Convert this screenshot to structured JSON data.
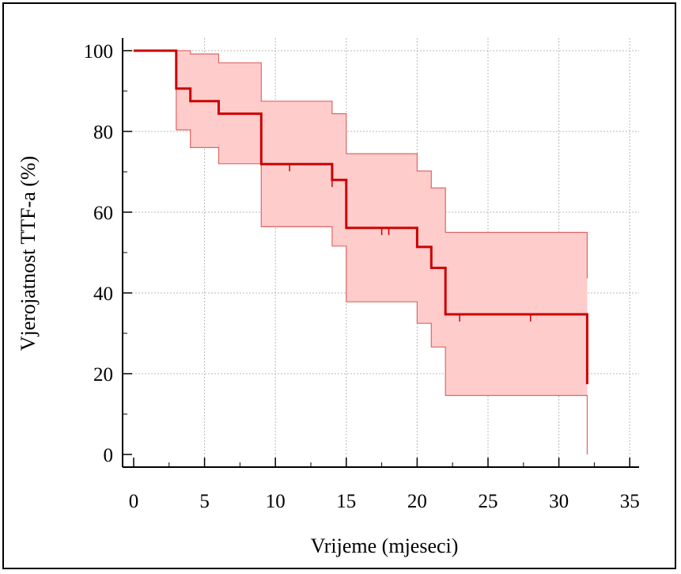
{
  "chart_data": {
    "type": "line",
    "subtype": "kaplan-meier survival curve with confidence band",
    "xlabel": "Vrijeme (mjeseci)",
    "ylabel": "Vjerojatnost TTF-a (%)",
    "xlim": [
      0,
      35
    ],
    "ylim": [
      0,
      100
    ],
    "x_ticks": [
      0,
      5,
      10,
      15,
      20,
      25,
      30,
      35
    ],
    "y_ticks": [
      0,
      20,
      40,
      60,
      80,
      100
    ],
    "grid": true,
    "colors": {
      "line": "#cc0000",
      "band": "#ffcccc",
      "band_edge": "#e06666",
      "grid": "#b8b8b8",
      "axis": "#000000"
    },
    "series": [
      {
        "role": "survival",
        "x": [
          0,
          3,
          4,
          6,
          9,
          14,
          15,
          20,
          21,
          22,
          32
        ],
        "y": [
          100,
          90.6,
          87.5,
          84.4,
          71.9,
          68.0,
          56.1,
          51.4,
          46.2,
          34.7,
          17.4
        ]
      },
      {
        "role": "upper_ci",
        "x": [
          0,
          3,
          4,
          6,
          9,
          14,
          15,
          20,
          21,
          22,
          32
        ],
        "y": [
          100,
          100,
          99.2,
          97.0,
          87.5,
          84.4,
          74.5,
          70.2,
          66.0,
          55.0,
          43.6
        ]
      },
      {
        "role": "lower_ci",
        "x": [
          0,
          3,
          4,
          6,
          9,
          14,
          15,
          20,
          21,
          22,
          32
        ],
        "y": [
          100,
          80.4,
          76.0,
          72.0,
          56.4,
          51.6,
          37.8,
          32.5,
          26.6,
          14.6,
          0
        ]
      }
    ],
    "censored_x": [
      11,
      14,
      17.5,
      18,
      23,
      28
    ]
  }
}
